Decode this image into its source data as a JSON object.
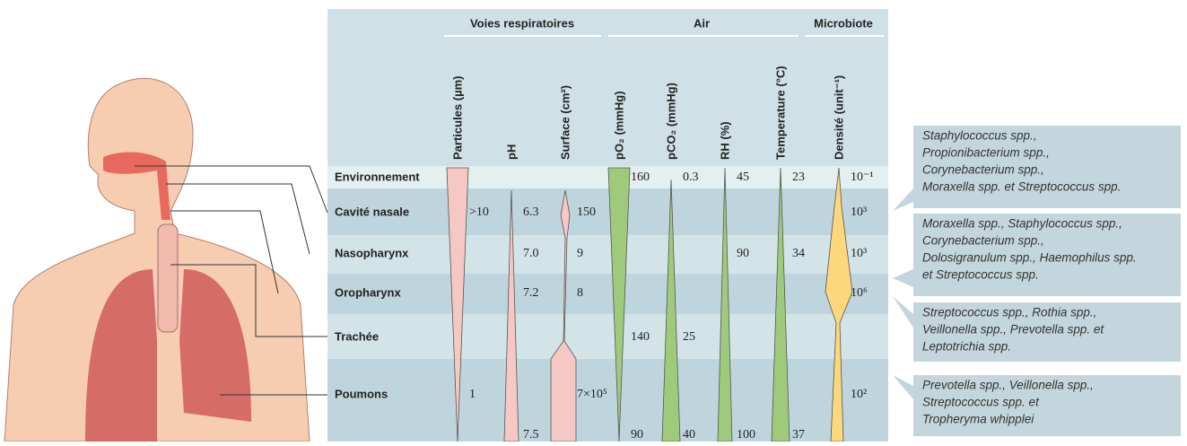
{
  "groups": [
    "Voies respiratoires",
    "Air",
    "Microbiote"
  ],
  "columns": [
    "Particules (µm)",
    "pH",
    "Surface (cm²)",
    "pO₂ (mmHg)",
    "pCO₂ (mmHg)",
    "RH (%)",
    "Temperature (°C)",
    "Densité (unit⁻¹)"
  ],
  "rows": [
    {
      "label": "Environnement",
      "cells": [
        null,
        null,
        null,
        "160",
        "0.3",
        "45",
        "23",
        "10⁻¹"
      ]
    },
    {
      "label": "Cavité nasale",
      "cells": [
        ">10",
        "6.3",
        "150",
        null,
        null,
        null,
        null,
        "10³"
      ]
    },
    {
      "label": "Nasopharynx",
      "cells": [
        null,
        "7.0",
        "9",
        null,
        null,
        "90",
        "34",
        "10³"
      ]
    },
    {
      "label": "Oropharynx",
      "cells": [
        null,
        "7.2",
        "8",
        null,
        null,
        null,
        null,
        "10⁶"
      ]
    },
    {
      "label": "Trachée",
      "cells": [
        null,
        null,
        null,
        "140",
        "25",
        null,
        null,
        null
      ]
    },
    {
      "label": "Poumons",
      "cells": [
        "1",
        null,
        "7×10⁵",
        null,
        null,
        null,
        null,
        "10²"
      ]
    },
    {
      "label": null,
      "cells": [
        null,
        "7.5",
        null,
        "90",
        "40",
        "100",
        "37",
        null
      ]
    }
  ],
  "microbiota": [
    [
      "Staphylococcus spp.,",
      "Propionibacterium spp.,",
      "Corynebacterium spp.,",
      "Moraxella spp. et Streptococcus spp."
    ],
    [
      "Moraxella spp., Staphylococcus spp.,",
      "Corynebacterium spp.,",
      "Dolosigranulum spp., Haemophilus spp.",
      "et Streptococcus spp."
    ],
    [
      "Streptococcus spp., Rothia spp.,",
      "Veillonella spp., Prevotella spp. et",
      "Leptotrichia spp."
    ],
    [
      "Prevotella spp., Veillonella spp.,",
      "Streptococcus spp. et",
      "Tropheryma whipplei"
    ]
  ]
}
